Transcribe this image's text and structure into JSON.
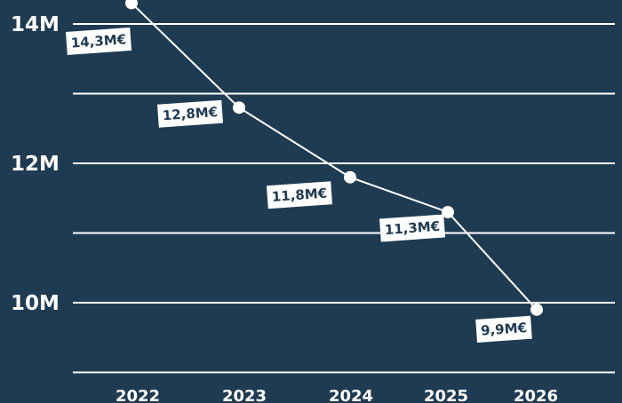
{
  "chart_data": {
    "type": "line",
    "categories": [
      "2022",
      "2023",
      "2024",
      "2025",
      "2026"
    ],
    "values": [
      14.3,
      12.8,
      11.8,
      11.3,
      9.9
    ],
    "data_labels": [
      "14,3M€",
      "12,8M€",
      "11,8M€",
      "11,3M€",
      "9,9M€"
    ],
    "y_ticks": [
      {
        "value": 14,
        "label": "14M"
      },
      {
        "value": 12,
        "label": "12M"
      },
      {
        "value": 10,
        "label": "10M"
      }
    ],
    "gridlines": [
      14,
      13,
      12,
      11,
      10,
      9
    ],
    "ylim": [
      9,
      14.3
    ],
    "grid": true,
    "title": "",
    "xlabel": "",
    "ylabel": ""
  },
  "colors": {
    "background": "#1f3b52",
    "line": "#ffffff",
    "label_box": "#ffffff",
    "label_text": "#1f3b52"
  }
}
